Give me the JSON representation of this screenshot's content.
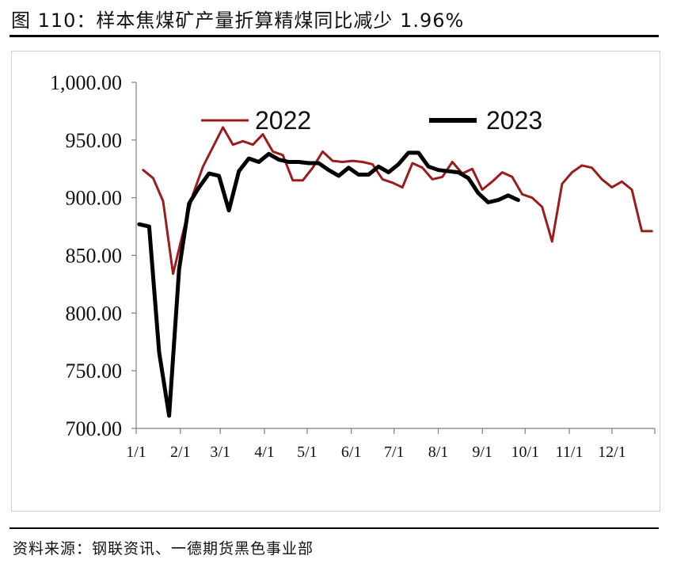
{
  "header": {
    "title": "图 110：样本焦煤矿产量折算精煤同比减少 1.96%"
  },
  "footer": {
    "source": "资料来源：钢联资讯、一德期货黑色事业部"
  },
  "colors": {
    "series_2022": "#9b1c1c",
    "series_2023": "#000000",
    "panel_border": "#d0d0d0",
    "axis": "#7f7f7f"
  },
  "chart_data": {
    "type": "line",
    "ylim": [
      700,
      1000
    ],
    "y_ticks": [
      "1,000.00",
      "950.00",
      "900.00",
      "850.00",
      "800.00",
      "750.00",
      "700.00"
    ],
    "y_tick_values": [
      1000,
      950,
      900,
      850,
      800,
      750,
      700
    ],
    "x_tick_labels": [
      "1/1",
      "2/1",
      "3/1",
      "4/1",
      "5/1",
      "6/1",
      "7/1",
      "8/1",
      "9/1",
      "10/1",
      "11/1",
      "12/1"
    ],
    "x_unit": "week",
    "x_range": [
      0,
      52
    ],
    "legend_position": "top",
    "series": [
      {
        "name": "2022",
        "x": [
          0.7,
          1.7,
          2.7,
          3.7,
          4.7,
          5.7,
          6.7,
          7.7,
          8.7,
          9.7,
          10.7,
          11.7,
          12.7,
          13.7,
          14.7,
          15.7,
          16.7,
          17.7,
          18.7,
          19.7,
          20.7,
          21.7,
          22.7,
          23.7,
          24.7,
          25.7,
          26.7,
          27.7,
          28.7,
          29.7,
          30.7,
          31.7,
          32.7,
          33.7,
          34.7,
          35.7,
          36.7,
          37.7,
          38.7,
          39.7,
          40.7,
          41.7,
          42.7,
          43.7,
          44.7,
          45.7,
          46.7,
          47.7,
          48.7,
          49.7,
          50.7,
          51.7
        ],
        "values": [
          924,
          917,
          897,
          834,
          870,
          903,
          927,
          944,
          961,
          946,
          949,
          946,
          955,
          940,
          937,
          915,
          915,
          926,
          940,
          932,
          931,
          932,
          931,
          929,
          916,
          913,
          909,
          930,
          926,
          916,
          918,
          931,
          921,
          925,
          907,
          914,
          922,
          918,
          903,
          900,
          892,
          862,
          912,
          922,
          928,
          926,
          916,
          909,
          914,
          907,
          871,
          871
        ]
      },
      {
        "name": "2023",
        "x": [
          0.3,
          1.3,
          2.3,
          3.3,
          4.3,
          5.3,
          6.3,
          7.3,
          8.3,
          9.3,
          10.3,
          11.3,
          12.3,
          13.3,
          14.3,
          15.3,
          16.3,
          17.3,
          18.3,
          19.3,
          20.3,
          21.3,
          22.3,
          23.3,
          24.3,
          25.3,
          26.3,
          27.3,
          28.3,
          29.3,
          30.3,
          31.3,
          32.3,
          33.3,
          34.3,
          35.3,
          36.3,
          37.3,
          38.3
        ],
        "values": [
          877,
          875,
          766,
          711,
          838,
          895,
          909,
          921,
          919,
          889,
          923,
          934,
          931,
          938,
          933,
          931,
          931,
          930,
          930,
          924,
          919,
          926,
          920,
          920,
          927,
          922,
          929,
          939,
          939,
          927,
          924,
          923,
          922,
          917,
          904,
          896,
          898,
          902,
          898
        ]
      }
    ]
  }
}
